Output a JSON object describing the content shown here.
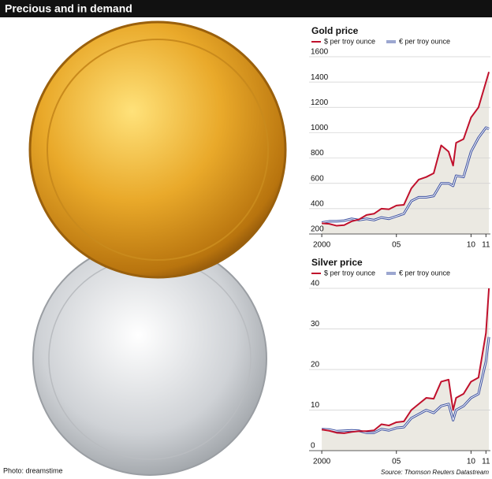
{
  "title": "Precious and in demand",
  "photo_credit": "Photo: dreamstime",
  "source": "Source: Thomson Reuters Datastream",
  "chart_data": [
    {
      "type": "line",
      "title": "Gold price",
      "x": [
        2000,
        2000.5,
        2001,
        2001.5,
        2002,
        2002.5,
        2003,
        2003.5,
        2004,
        2004.5,
        2005,
        2005.5,
        2006,
        2006.5,
        2007,
        2007.5,
        2008,
        2008.5,
        2008.8,
        2009,
        2009.5,
        2010,
        2010.5,
        2011,
        2011.2
      ],
      "series": [
        {
          "name": "$ per troy ounce",
          "color": "#c0102c",
          "values": [
            285,
            280,
            265,
            270,
            300,
            315,
            350,
            360,
            400,
            395,
            425,
            430,
            560,
            630,
            650,
            680,
            900,
            850,
            740,
            920,
            950,
            1120,
            1200,
            1400,
            1480
          ]
        },
        {
          "name": "€ per troy ounce",
          "color": "#3a4fa0",
          "values": [
            290,
            300,
            300,
            305,
            320,
            310,
            320,
            310,
            330,
            320,
            340,
            360,
            460,
            490,
            490,
            500,
            600,
            600,
            580,
            660,
            650,
            850,
            960,
            1040,
            1030
          ]
        }
      ],
      "xlim": [
        1999.15,
        2011.3
      ],
      "xticks": [
        {
          "value": 2000,
          "label": "2000"
        },
        {
          "value": 2005,
          "label": "05"
        },
        {
          "value": 2010,
          "label": "10"
        },
        {
          "value": 2011,
          "label": "11"
        }
      ],
      "ylim": [
        200,
        1600
      ],
      "yticks": [
        200,
        400,
        600,
        800,
        1000,
        1200,
        1400,
        1600
      ],
      "grid": true
    },
    {
      "type": "line",
      "title": "Silver price",
      "x": [
        2000,
        2000.5,
        2001,
        2001.5,
        2002,
        2002.5,
        2003,
        2003.5,
        2004,
        2004.5,
        2005,
        2005.5,
        2006,
        2006.5,
        2007,
        2007.5,
        2008,
        2008.5,
        2008.8,
        2009,
        2009.5,
        2010,
        2010.5,
        2011,
        2011.2
      ],
      "series": [
        {
          "name": "$ per troy ounce",
          "color": "#c0102c",
          "values": [
            5.2,
            4.9,
            4.4,
            4.3,
            4.6,
            4.8,
            4.8,
            5.0,
            6.5,
            6.2,
            7.0,
            7.2,
            10,
            11.5,
            13,
            12.8,
            17,
            17.5,
            10,
            13,
            14,
            17,
            18,
            29,
            40
          ]
        },
        {
          "name": "€ per troy ounce",
          "color": "#3a4fa0",
          "values": [
            5.3,
            5.2,
            4.8,
            4.9,
            5.0,
            4.9,
            4.4,
            4.4,
            5.3,
            5.0,
            5.6,
            5.8,
            8.0,
            9.0,
            10.0,
            9.3,
            11,
            11.5,
            7.5,
            10,
            11,
            13,
            14,
            22,
            28
          ]
        }
      ],
      "xlim": [
        1999.15,
        2011.3
      ],
      "xticks": [
        {
          "value": 2000,
          "label": "2000"
        },
        {
          "value": 2005,
          "label": "05"
        },
        {
          "value": 2010,
          "label": "10"
        },
        {
          "value": 2011,
          "label": "11"
        }
      ],
      "ylim": [
        0,
        40
      ],
      "yticks": [
        0,
        10,
        20,
        30,
        40
      ],
      "grid": true
    }
  ]
}
